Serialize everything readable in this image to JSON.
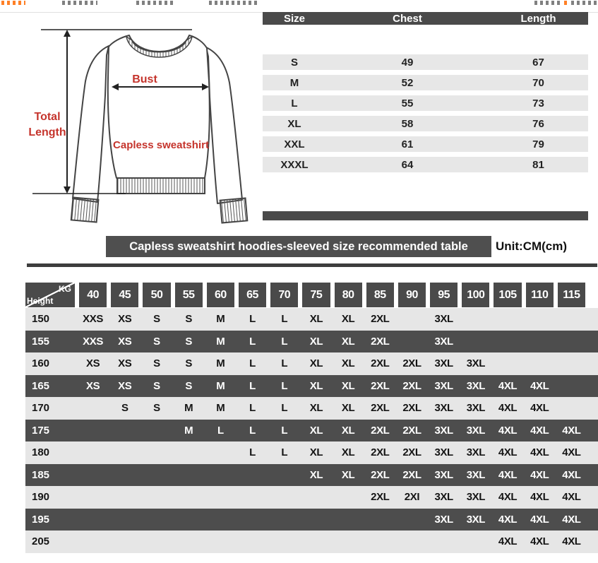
{
  "top_bar": {
    "accent_color": "#ff6a00",
    "muted_color": "#6a6a6a"
  },
  "diagram": {
    "bust_label": "Bust",
    "total_length_line1": "Total",
    "total_length_line2": "Length",
    "product_label": "Capless sweatshirt",
    "label_color": "#c5342c"
  },
  "size_table": {
    "headers": [
      "Size",
      "Chest",
      "Length"
    ],
    "rows": [
      [
        "S",
        "49",
        "67"
      ],
      [
        "M",
        "52",
        "70"
      ],
      [
        "L",
        "55",
        "73"
      ],
      [
        "XL",
        "58",
        "76"
      ],
      [
        "XXL",
        "61",
        "79"
      ],
      [
        "XXXL",
        "64",
        "81"
      ]
    ]
  },
  "banner": {
    "title": "Capless sweatshirt hoodies-sleeved size recommended table",
    "unit_label": "Unit:CM(cm)"
  },
  "matrix": {
    "corner_top": "KG",
    "corner_bottom": "Height",
    "weights": [
      "40",
      "45",
      "50",
      "55",
      "60",
      "65",
      "70",
      "75",
      "80",
      "85",
      "90",
      "95",
      "100",
      "105",
      "110",
      "115"
    ],
    "rows": [
      {
        "height": "150",
        "cells": [
          "XXS",
          "XS",
          "S",
          "S",
          "M",
          "L",
          "L",
          "XL",
          "XL",
          "2XL",
          "",
          "3XL",
          "",
          "",
          "",
          ""
        ]
      },
      {
        "height": "155",
        "cells": [
          "XXS",
          "XS",
          "S",
          "S",
          "M",
          "L",
          "L",
          "XL",
          "XL",
          "2XL",
          "",
          "3XL",
          "",
          "",
          "",
          ""
        ]
      },
      {
        "height": "160",
        "cells": [
          "XS",
          "XS",
          "S",
          "S",
          "M",
          "L",
          "L",
          "XL",
          "XL",
          "2XL",
          "2XL",
          "3XL",
          "3XL",
          "",
          "",
          ""
        ]
      },
      {
        "height": "165",
        "cells": [
          "XS",
          "XS",
          "S",
          "S",
          "M",
          "L",
          "L",
          "XL",
          "XL",
          "2XL",
          "2XL",
          "3XL",
          "3XL",
          "4XL",
          "4XL",
          ""
        ]
      },
      {
        "height": "170",
        "cells": [
          "",
          "S",
          "S",
          "M",
          "M",
          "L",
          "L",
          "XL",
          "XL",
          "2XL",
          "2XL",
          "3XL",
          "3XL",
          "4XL",
          "4XL",
          ""
        ]
      },
      {
        "height": "175",
        "cells": [
          "",
          "",
          "",
          "M",
          "L",
          "L",
          "L",
          "XL",
          "XL",
          "2XL",
          "2XL",
          "3XL",
          "3XL",
          "4XL",
          "4XL",
          "4XL"
        ]
      },
      {
        "height": "180",
        "cells": [
          "",
          "",
          "",
          "",
          "",
          "L",
          "L",
          "XL",
          "XL",
          "2XL",
          "2XL",
          "3XL",
          "3XL",
          "4XL",
          "4XL",
          "4XL"
        ]
      },
      {
        "height": "185",
        "cells": [
          "",
          "",
          "",
          "",
          "",
          "",
          "",
          "XL",
          "XL",
          "2XL",
          "2XL",
          "3XL",
          "3XL",
          "4XL",
          "4XL",
          "4XL"
        ]
      },
      {
        "height": "190",
        "cells": [
          "",
          "",
          "",
          "",
          "",
          "",
          "",
          "",
          "",
          "2XL",
          "2XI",
          "3XL",
          "3XL",
          "4XL",
          "4XL",
          "4XL"
        ]
      },
      {
        "height": "195",
        "cells": [
          "",
          "",
          "",
          "",
          "",
          "",
          "",
          "",
          "",
          "",
          "",
          "3XL",
          "3XL",
          "4XL",
          "4XL",
          "4XL"
        ]
      },
      {
        "height": "205",
        "cells": [
          "",
          "",
          "",
          "",
          "",
          "",
          "",
          "",
          "",
          "",
          "",
          "",
          "",
          "4XL",
          "4XL",
          "4XL"
        ]
      }
    ]
  },
  "colors": {
    "header_dark": "#4a4a4a",
    "row_dark": "#4d4d4d",
    "row_light": "#e6e6e6",
    "rule_dark": "#3d3d3d"
  }
}
